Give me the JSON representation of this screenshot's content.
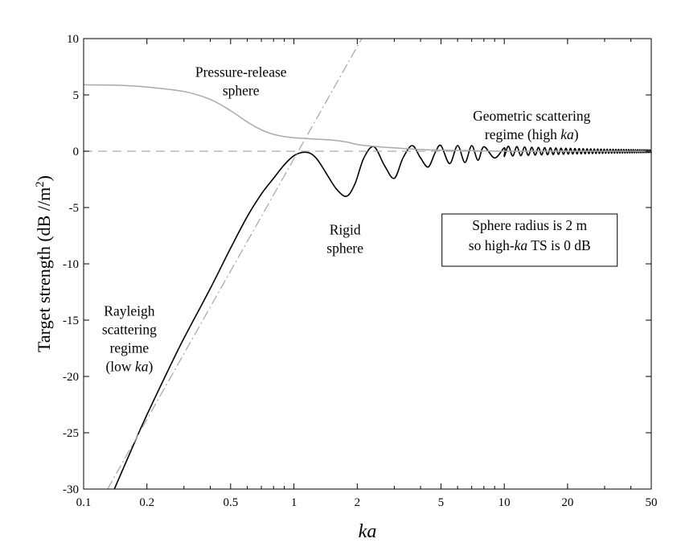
{
  "chart_data": {
    "type": "line",
    "title": "",
    "xlabel": "ka",
    "ylabel": "Target strength (dB //m",
    "ylabel_superscript": "2",
    "ylabel_close": ")",
    "xscale": "log",
    "xlim": [
      0.1,
      50
    ],
    "ylim": [
      -30,
      10
    ],
    "x_ticks": [
      0.1,
      0.2,
      0.5,
      1,
      2,
      5,
      10,
      20,
      50
    ],
    "x_tick_labels": [
      "0.1",
      "0.2",
      "0.5",
      "1",
      "2",
      "5",
      "10",
      "20",
      "50"
    ],
    "y_ticks": [
      10,
      5,
      0,
      -5,
      -10,
      -15,
      -20,
      -25,
      -30
    ],
    "y_tick_labels": [
      "10",
      "5",
      "0",
      "-5",
      "-10",
      "-15",
      "-20",
      "-25",
      "-30"
    ],
    "grid": false,
    "legend": "none",
    "series": [
      {
        "style": "solid",
        "color": "#000000",
        "x": [
          0.14,
          0.16,
          0.18,
          0.2,
          0.25,
          0.3,
          0.4,
          0.5,
          0.6,
          0.7,
          0.8,
          0.9,
          1.0,
          1.1,
          1.2,
          1.3,
          1.45,
          1.6,
          1.78,
          1.95,
          2.15,
          2.4,
          2.7,
          3.0,
          3.3,
          3.65,
          4.0,
          4.35,
          4.7,
          5.0,
          5.5,
          6.0,
          6.5,
          7.0,
          7.5,
          8.0,
          9.0,
          10,
          12,
          15,
          20,
          30,
          50
        ],
        "y": [
          -30,
          -27.5,
          -25.3,
          -23.4,
          -19.6,
          -16.6,
          -12.2,
          -8.6,
          -5.8,
          -3.8,
          -2.4,
          -1.2,
          -0.4,
          -0.1,
          -0.2,
          -0.8,
          -2.2,
          -3.4,
          -4.0,
          -2.9,
          -0.6,
          0.4,
          -1.3,
          -2.4,
          -0.6,
          0.5,
          -0.6,
          -1.4,
          -0.1,
          0.5,
          -1.1,
          0.5,
          -1.0,
          0.5,
          -0.8,
          0.4,
          -0.6,
          0.3,
          -0.4,
          -0.3,
          0.2,
          -0.1,
          0.0
        ]
      },
      {
        "style": "solid",
        "color": "#aaaaaa",
        "x": [
          0.1,
          0.15,
          0.2,
          0.3,
          0.4,
          0.5,
          0.6,
          0.7,
          0.8,
          0.9,
          1.0,
          1.2,
          1.5,
          1.8,
          2.0,
          2.5,
          3.0,
          4.0,
          5.0,
          7.0,
          10,
          20,
          50
        ],
        "y": [
          5.9,
          5.85,
          5.7,
          5.3,
          4.6,
          3.6,
          2.6,
          1.9,
          1.5,
          1.3,
          1.2,
          1.1,
          1.0,
          0.8,
          0.6,
          0.4,
          0.3,
          0.15,
          0.1,
          0.05,
          0.0,
          0.0,
          0.0
        ]
      },
      {
        "style": "dash-dot",
        "color": "#aaaaaa",
        "x": [
          0.13,
          2.1
        ],
        "y": [
          -30.0,
          10.0
        ]
      },
      {
        "style": "dashed",
        "color": "#aaaaaa",
        "x": [
          0.1,
          50
        ],
        "y": [
          0,
          0
        ]
      }
    ],
    "annotations": [
      {
        "id": "pressure",
        "lines": [
          "Pressure-release",
          "sphere"
        ],
        "x": 0.56,
        "y": 6.6
      },
      {
        "id": "geometric",
        "lines": [
          "Geometric scattering",
          "regime (high ka)"
        ],
        "x": 13.5,
        "y": 2.7
      },
      {
        "id": "rigid",
        "lines": [
          "Rigid",
          "sphere"
        ],
        "x": 1.75,
        "y": -7.4
      },
      {
        "id": "rayleigh",
        "lines": [
          "Rayleigh",
          "scattering",
          "regime",
          "(low ka)"
        ],
        "x": 0.165,
        "y": -14.6
      }
    ],
    "note_box": {
      "lines": [
        "Sphere radius is 2 m",
        "so high-ka TS is 0 dB"
      ],
      "x": 13.2,
      "y": -7.0
    }
  }
}
